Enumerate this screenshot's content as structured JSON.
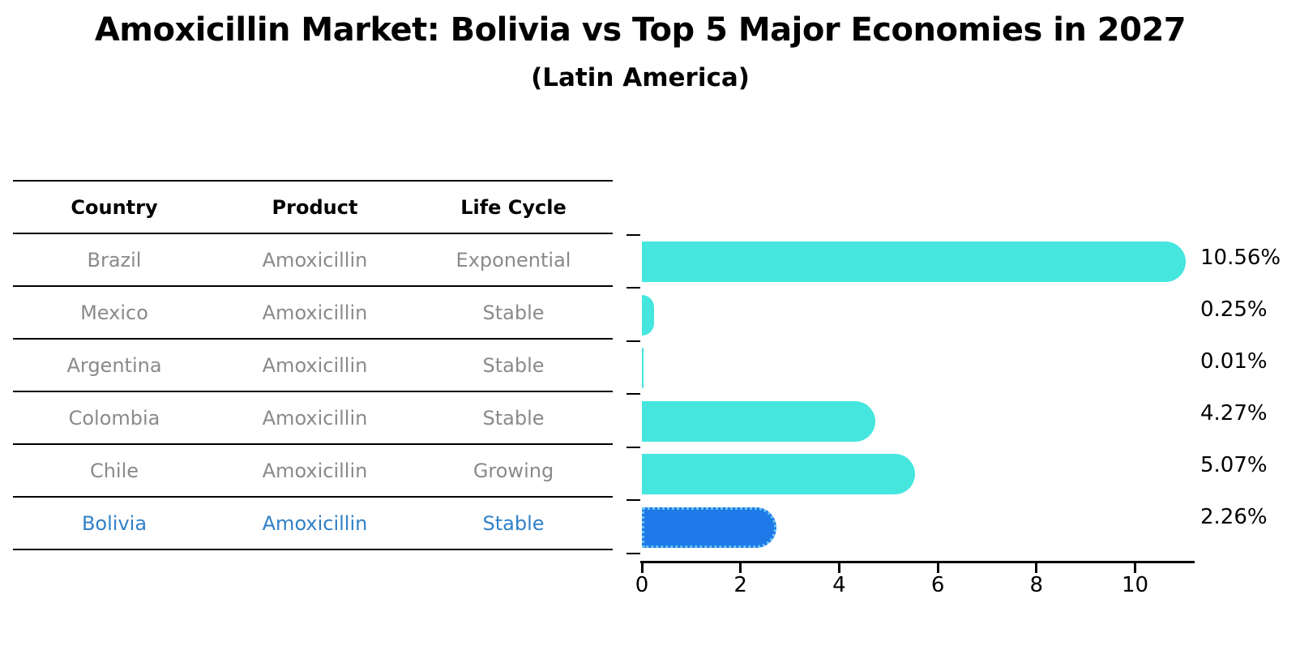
{
  "title": "Amoxicillin Market: Bolivia vs Top 5 Major Economies in 2027",
  "subtitle": "(Latin America)",
  "table": {
    "headers": [
      "Country",
      "Product",
      "Life Cycle"
    ],
    "rows": [
      {
        "country": "Brazil",
        "product": "Amoxicillin",
        "life_cycle": "Exponential",
        "highlighted": false
      },
      {
        "country": "Mexico",
        "product": "Amoxicillin",
        "life_cycle": "Stable",
        "highlighted": false
      },
      {
        "country": "Argentina",
        "product": "Amoxicillin",
        "life_cycle": "Stable",
        "highlighted": false
      },
      {
        "country": "Colombia",
        "product": "Amoxicillin",
        "life_cycle": "Stable",
        "highlighted": false
      },
      {
        "country": "Chile",
        "product": "Amoxicillin",
        "life_cycle": "Growing",
        "highlighted": false
      },
      {
        "country": "Bolivia",
        "product": "Amoxicillin",
        "life_cycle": "Stable",
        "highlighted": true
      }
    ]
  },
  "chart_data": {
    "type": "bar",
    "orientation": "horizontal",
    "title": "Amoxicillin Market: Bolivia vs Top 5 Major Economies in 2027",
    "subtitle": "(Latin America)",
    "categories": [
      "Brazil",
      "Mexico",
      "Argentina",
      "Colombia",
      "Chile",
      "Bolivia"
    ],
    "values": [
      10.56,
      0.25,
      0.01,
      4.27,
      5.07,
      2.26
    ],
    "value_labels": [
      "10.56%",
      "0.25%",
      "0.01%",
      "4.27%",
      "5.07%",
      "2.26%"
    ],
    "x_ticks": [
      0,
      2,
      4,
      6,
      8,
      10
    ],
    "x_tick_labels": [
      "0",
      "2",
      "4",
      "6",
      "8",
      "10"
    ],
    "xlim": [
      0,
      11.2
    ],
    "highlight_index": 5,
    "grid": false,
    "legend": false
  },
  "colors": {
    "bar": "#45E6DE",
    "highlight_bar": "#1E7AE8",
    "highlight_bar_border": "#6CC3F1",
    "row_text": "#8A8A8A",
    "highlight_text": "#3080C8",
    "heading_text": "#000000",
    "axis": "#000000",
    "background": "#FFFFFF"
  }
}
